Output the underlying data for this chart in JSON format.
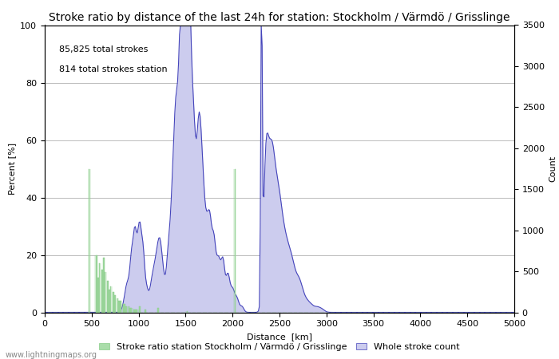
{
  "title": "Stroke ratio by distance of the last 24h for station: Stockholm / Värmdö / Grisslinge",
  "annotation_line1": "85,825 total strokes",
  "annotation_line2": "814 total strokes station",
  "xlabel": "Distance  [km]",
  "ylabel_left": "Percent [%]",
  "ylabel_right": "Count",
  "xlim": [
    0,
    5000
  ],
  "ylim_left": [
    0,
    100
  ],
  "ylim_right": [
    0,
    3500
  ],
  "yticks_left": [
    0,
    20,
    40,
    60,
    80,
    100
  ],
  "yticks_right": [
    0,
    500,
    1000,
    1500,
    2000,
    2500,
    3000,
    3500
  ],
  "xticks": [
    0,
    500,
    1000,
    1500,
    2000,
    2500,
    3000,
    3500,
    4000,
    4500,
    5000
  ],
  "watermark": "www.lightningmaps.org",
  "legend_green": "Stroke ratio station Stockholm / Värmdö / Grisslinge",
  "legend_blue": "Whole stroke count",
  "background_color": "#ffffff",
  "plot_bg_color": "#ffffff",
  "grid_color": "#bbbbbb",
  "blue_line_color": "#4444bb",
  "blue_fill_color": "#ccccee",
  "green_bar_color": "#aaddaa",
  "green_bar_edge": "#88cc88",
  "title_fontsize": 10,
  "label_fontsize": 8,
  "tick_fontsize": 8,
  "annotation_fontsize": 8
}
